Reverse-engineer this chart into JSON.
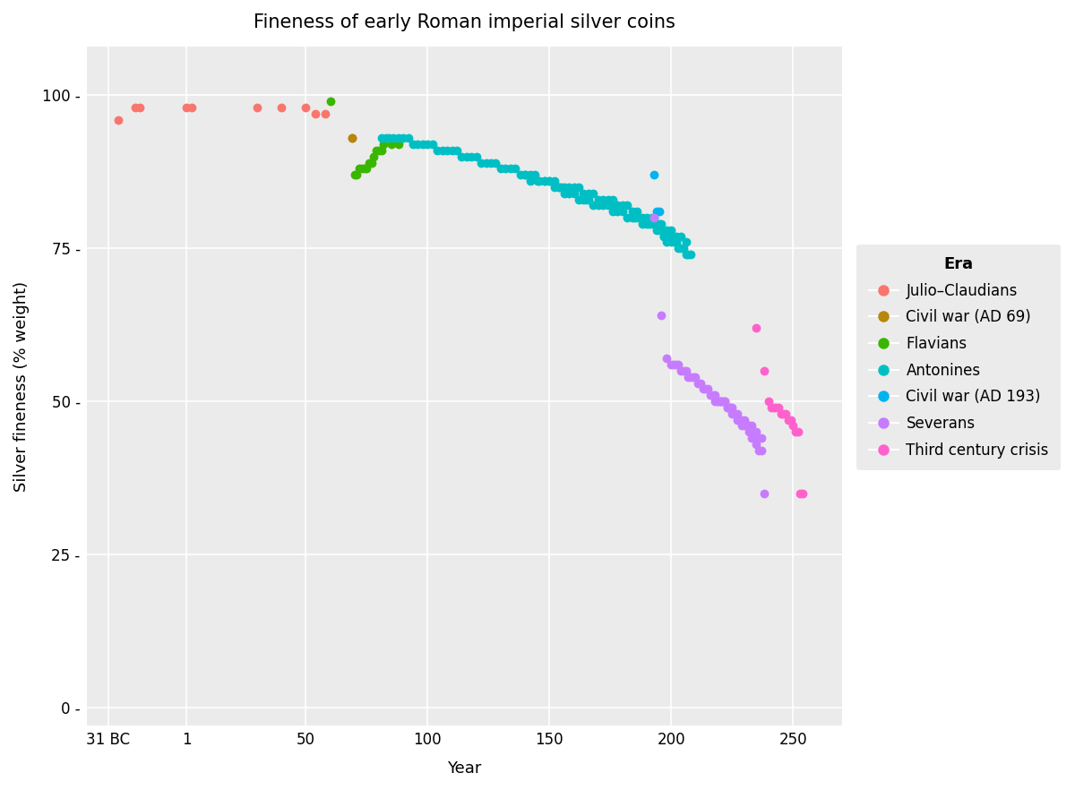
{
  "title": "Fineness of early Roman imperial silver coins",
  "xlabel": "Year",
  "ylabel": "Silver fineness (% weight)",
  "bg_color": "#EBEBEB",
  "grid_color": "white",
  "legend_title": "Era",
  "legend_bg": "#EBEBEB",
  "eras": {
    "Julio-Claudians": {
      "color": "#F8766D",
      "points": [
        [
          -27,
          96
        ],
        [
          -20,
          98
        ],
        [
          -18,
          98
        ],
        [
          1,
          98
        ],
        [
          3,
          98
        ],
        [
          30,
          98
        ],
        [
          40,
          98
        ],
        [
          50,
          98
        ],
        [
          54,
          97
        ],
        [
          58,
          97
        ]
      ]
    },
    "Civil war (AD 69)": {
      "color": "#B8860B",
      "points": [
        [
          69,
          93
        ],
        [
          69,
          93
        ]
      ]
    },
    "Flavians": {
      "color": "#39B600",
      "points": [
        [
          70,
          87
        ],
        [
          71,
          87
        ],
        [
          72,
          88
        ],
        [
          73,
          88
        ],
        [
          74,
          88
        ],
        [
          75,
          88
        ],
        [
          76,
          89
        ],
        [
          77,
          89
        ],
        [
          78,
          90
        ],
        [
          79,
          91
        ],
        [
          80,
          91
        ],
        [
          81,
          91
        ],
        [
          82,
          92
        ],
        [
          85,
          92
        ],
        [
          88,
          92
        ],
        [
          60,
          99
        ]
      ]
    },
    "Antonines": {
      "color": "#00BFC4",
      "points": [
        [
          81,
          93
        ],
        [
          83,
          93
        ],
        [
          84,
          93
        ],
        [
          86,
          93
        ],
        [
          88,
          93
        ],
        [
          90,
          93
        ],
        [
          92,
          93
        ],
        [
          94,
          92
        ],
        [
          96,
          92
        ],
        [
          98,
          92
        ],
        [
          100,
          92
        ],
        [
          102,
          92
        ],
        [
          104,
          91
        ],
        [
          106,
          91
        ],
        [
          108,
          91
        ],
        [
          110,
          91
        ],
        [
          112,
          91
        ],
        [
          114,
          90
        ],
        [
          116,
          90
        ],
        [
          118,
          90
        ],
        [
          120,
          90
        ],
        [
          122,
          89
        ],
        [
          124,
          89
        ],
        [
          126,
          89
        ],
        [
          128,
          89
        ],
        [
          130,
          88
        ],
        [
          132,
          88
        ],
        [
          134,
          88
        ],
        [
          136,
          88
        ],
        [
          138,
          87
        ],
        [
          140,
          87
        ],
        [
          142,
          87
        ],
        [
          144,
          87
        ],
        [
          146,
          86
        ],
        [
          148,
          86
        ],
        [
          150,
          86
        ],
        [
          152,
          86
        ],
        [
          154,
          85
        ],
        [
          156,
          85
        ],
        [
          158,
          85
        ],
        [
          160,
          85
        ],
        [
          162,
          85
        ],
        [
          164,
          84
        ],
        [
          166,
          84
        ],
        [
          168,
          84
        ],
        [
          170,
          83
        ],
        [
          172,
          83
        ],
        [
          174,
          83
        ],
        [
          176,
          83
        ],
        [
          178,
          82
        ],
        [
          180,
          82
        ],
        [
          182,
          82
        ],
        [
          184,
          81
        ],
        [
          186,
          81
        ],
        [
          188,
          80
        ],
        [
          190,
          80
        ],
        [
          192,
          80
        ],
        [
          194,
          79
        ],
        [
          196,
          79
        ],
        [
          198,
          78
        ],
        [
          200,
          78
        ],
        [
          202,
          77
        ],
        [
          204,
          77
        ],
        [
          206,
          76
        ],
        [
          193,
          80
        ],
        [
          194,
          79
        ],
        [
          195,
          79
        ],
        [
          196,
          78
        ],
        [
          197,
          77
        ],
        [
          198,
          76
        ],
        [
          140,
          87
        ],
        [
          142,
          86
        ],
        [
          145,
          86
        ],
        [
          148,
          86
        ],
        [
          150,
          86
        ],
        [
          152,
          85
        ],
        [
          154,
          85
        ],
        [
          155,
          85
        ],
        [
          156,
          84
        ],
        [
          158,
          84
        ],
        [
          160,
          84
        ],
        [
          162,
          83
        ],
        [
          164,
          83
        ],
        [
          165,
          83
        ],
        [
          166,
          83
        ],
        [
          168,
          82
        ],
        [
          170,
          82
        ],
        [
          172,
          82
        ],
        [
          174,
          82
        ],
        [
          175,
          82
        ],
        [
          176,
          81
        ],
        [
          178,
          81
        ],
        [
          180,
          81
        ],
        [
          182,
          80
        ],
        [
          184,
          80
        ],
        [
          185,
          80
        ],
        [
          186,
          80
        ],
        [
          188,
          79
        ],
        [
          190,
          79
        ],
        [
          191,
          79
        ],
        [
          192,
          79
        ],
        [
          193,
          79
        ],
        [
          194,
          78
        ],
        [
          195,
          78
        ],
        [
          196,
          78
        ],
        [
          197,
          77
        ],
        [
          198,
          77
        ],
        [
          199,
          77
        ],
        [
          200,
          76
        ],
        [
          201,
          76
        ],
        [
          202,
          76
        ],
        [
          203,
          75
        ],
        [
          204,
          75
        ],
        [
          205,
          75
        ],
        [
          206,
          74
        ],
        [
          207,
          74
        ],
        [
          208,
          74
        ]
      ]
    },
    "Civil war (AD 193)": {
      "color": "#00B4F0",
      "points": [
        [
          193,
          87
        ],
        [
          194,
          81
        ],
        [
          195,
          81
        ]
      ]
    },
    "Severans": {
      "color": "#C77CFF",
      "points": [
        [
          193,
          80
        ],
        [
          196,
          64
        ],
        [
          198,
          57
        ],
        [
          200,
          56
        ],
        [
          201,
          56
        ],
        [
          202,
          56
        ],
        [
          203,
          56
        ],
        [
          204,
          55
        ],
        [
          205,
          55
        ],
        [
          206,
          55
        ],
        [
          207,
          54
        ],
        [
          208,
          54
        ],
        [
          209,
          54
        ],
        [
          210,
          54
        ],
        [
          211,
          53
        ],
        [
          212,
          53
        ],
        [
          213,
          52
        ],
        [
          214,
          52
        ],
        [
          215,
          52
        ],
        [
          216,
          51
        ],
        [
          217,
          51
        ],
        [
          218,
          51
        ],
        [
          219,
          50
        ],
        [
          220,
          50
        ],
        [
          221,
          50
        ],
        [
          222,
          50
        ],
        [
          223,
          49
        ],
        [
          224,
          49
        ],
        [
          225,
          49
        ],
        [
          226,
          48
        ],
        [
          227,
          48
        ],
        [
          228,
          47
        ],
        [
          229,
          47
        ],
        [
          230,
          47
        ],
        [
          231,
          46
        ],
        [
          232,
          46
        ],
        [
          233,
          46
        ],
        [
          234,
          45
        ],
        [
          235,
          45
        ],
        [
          236,
          44
        ],
        [
          237,
          44
        ],
        [
          218,
          50
        ],
        [
          219,
          50
        ],
        [
          220,
          50
        ],
        [
          221,
          50
        ],
        [
          222,
          50
        ],
        [
          223,
          49
        ],
        [
          224,
          49
        ],
        [
          225,
          48
        ],
        [
          226,
          48
        ],
        [
          227,
          47
        ],
        [
          228,
          47
        ],
        [
          229,
          46
        ],
        [
          230,
          46
        ],
        [
          231,
          46
        ],
        [
          232,
          45
        ],
        [
          233,
          44
        ],
        [
          234,
          44
        ],
        [
          235,
          43
        ],
        [
          236,
          42
        ],
        [
          237,
          42
        ],
        [
          238,
          35
        ]
      ]
    },
    "Third century crisis": {
      "color": "#FF61CC",
      "points": [
        [
          235,
          62
        ],
        [
          238,
          55
        ],
        [
          240,
          50
        ],
        [
          241,
          49
        ],
        [
          242,
          49
        ],
        [
          243,
          49
        ],
        [
          244,
          49
        ],
        [
          245,
          48
        ],
        [
          246,
          48
        ],
        [
          247,
          48
        ],
        [
          248,
          47
        ],
        [
          249,
          47
        ],
        [
          250,
          46
        ],
        [
          251,
          45
        ],
        [
          252,
          45
        ],
        [
          253,
          35
        ],
        [
          254,
          35
        ]
      ]
    }
  },
  "xlim": [
    -40,
    270
  ],
  "ylim": [
    -3,
    108
  ],
  "xticks": [
    -31,
    1,
    50,
    100,
    150,
    200,
    250
  ],
  "xticklabels": [
    "31 BC",
    "1",
    "50",
    "100",
    "150",
    "200",
    "250"
  ],
  "yticks": [
    0,
    25,
    50,
    75,
    100
  ]
}
